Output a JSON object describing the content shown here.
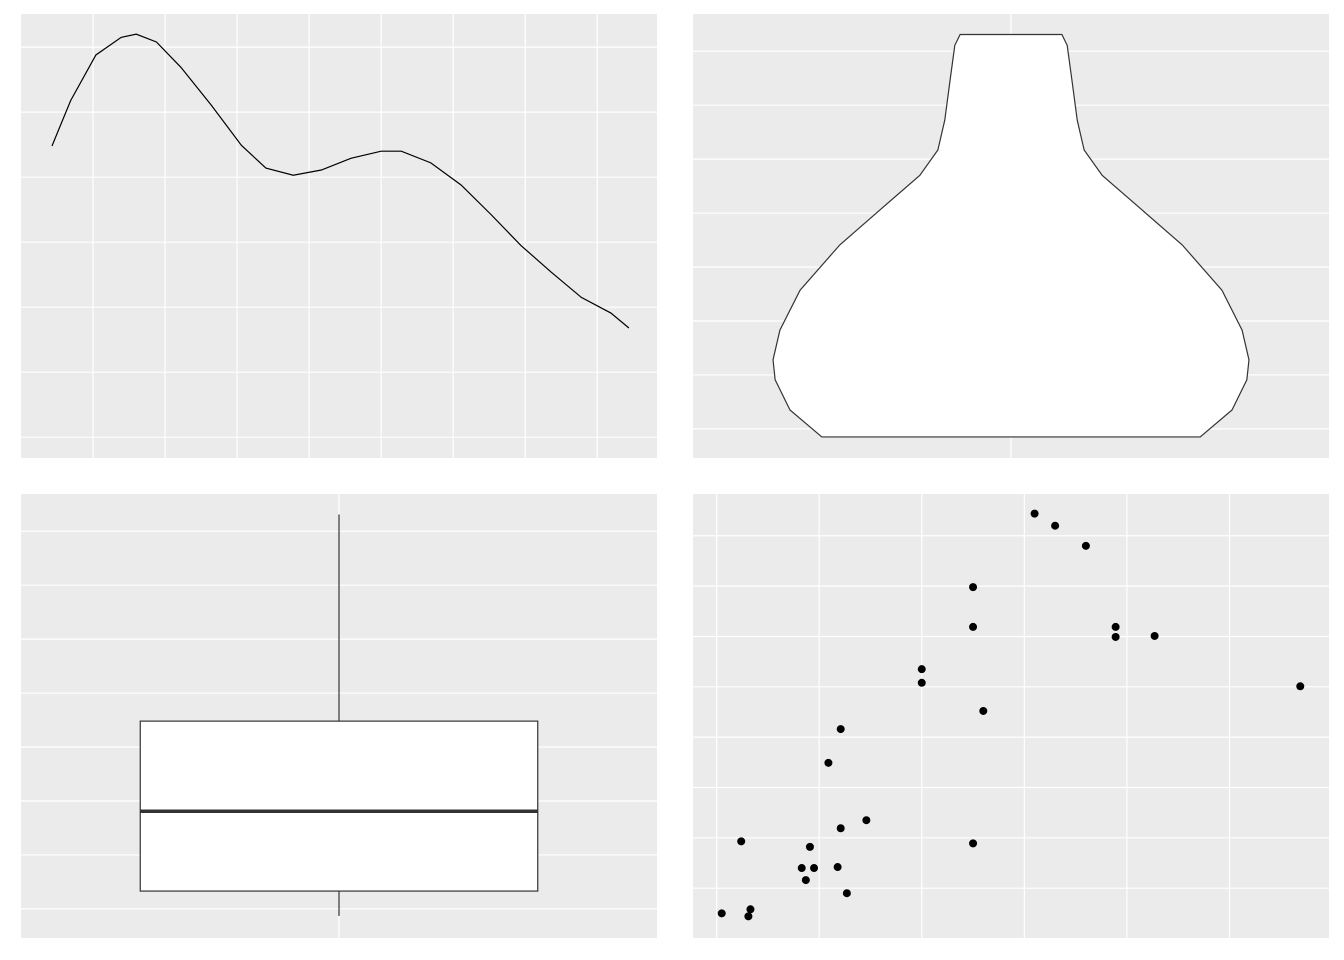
{
  "chart_data": [
    {
      "type": "line",
      "color": "#000000",
      "grid": true,
      "x": [
        0.43,
        0.69,
        1.04,
        1.39,
        1.6,
        1.88,
        2.22,
        2.64,
        3.06,
        3.4,
        3.78,
        4.17,
        4.58,
        5.0,
        5.28,
        5.69,
        6.11,
        6.53,
        6.94,
        7.36,
        7.78,
        8.19,
        8.44
      ],
      "values": [
        4.48,
        5.18,
        5.88,
        6.15,
        6.2,
        6.08,
        5.69,
        5.11,
        4.49,
        4.14,
        4.03,
        4.11,
        4.29,
        4.4,
        4.4,
        4.22,
        3.88,
        3.42,
        2.95,
        2.54,
        2.15,
        1.91,
        1.68
      ],
      "xlim": [
        0,
        8.83
      ],
      "xticks": [
        1,
        2,
        3,
        4,
        5,
        6,
        7,
        8
      ],
      "ylim": [
        -0.32,
        6.51
      ],
      "yticks": [
        0,
        1,
        2,
        3,
        4,
        5,
        6
      ]
    },
    {
      "type": "violin",
      "color": "#ffffff",
      "grid": true,
      "categories": [
        null
      ],
      "y": [
        -0.15,
        0.35,
        0.91,
        1.28,
        1.83,
        2.57,
        3.41,
        4.06,
        4.7,
        5.17,
        5.72,
        6.46,
        7.11,
        7.31
      ],
      "widths": [
        0.357,
        0.417,
        0.445,
        0.449,
        0.436,
        0.398,
        0.323,
        0.247,
        0.172,
        0.138,
        0.125,
        0.115,
        0.106,
        0.096
      ],
      "xlim": [
        0.4,
        1.6
      ],
      "ylim": [
        -0.54,
        7.69
      ],
      "yticks": [
        0,
        1,
        2,
        3,
        4,
        5,
        6,
        7
      ]
    },
    {
      "type": "box",
      "color": "#ffffff",
      "grid": true,
      "categories": [
        null
      ],
      "stats": {
        "min": -0.13,
        "q1": 0.33,
        "median": 1.81,
        "q3": 3.48,
        "max": 7.31
      },
      "xlim": [
        0.4,
        1.6
      ],
      "ylim": [
        -0.54,
        7.69
      ],
      "yticks": [
        0,
        1,
        2,
        3,
        4,
        5,
        6,
        7
      ]
    },
    {
      "type": "scatter",
      "color": "#000000",
      "grid": true,
      "x": [
        0.05,
        0.31,
        0.33,
        0.24,
        0.83,
        0.87,
        0.91,
        0.95,
        1.18,
        1.21,
        1.27,
        1.46,
        1.09,
        1.21,
        2.0,
        2.0,
        2.5,
        2.5,
        2.5,
        2.6,
        3.1,
        3.3,
        3.6,
        3.89,
        3.89,
        4.27,
        5.69
      ],
      "values": [
        -0.5,
        -0.56,
        -0.42,
        0.93,
        0.4,
        0.16,
        0.82,
        0.4,
        0.42,
        1.19,
        -0.1,
        1.35,
        2.49,
        3.16,
        4.35,
        4.08,
        5.98,
        5.19,
        0.89,
        3.52,
        7.44,
        7.2,
        6.8,
        5.19,
        4.99,
        5.01,
        4.01
      ],
      "xlim": [
        -0.23,
        5.97
      ],
      "xticks": [
        0,
        1,
        2,
        3,
        4,
        5
      ],
      "ylim": [
        -0.99,
        7.83
      ],
      "yticks": [
        0,
        1,
        2,
        3,
        4,
        5,
        6,
        7
      ]
    }
  ]
}
